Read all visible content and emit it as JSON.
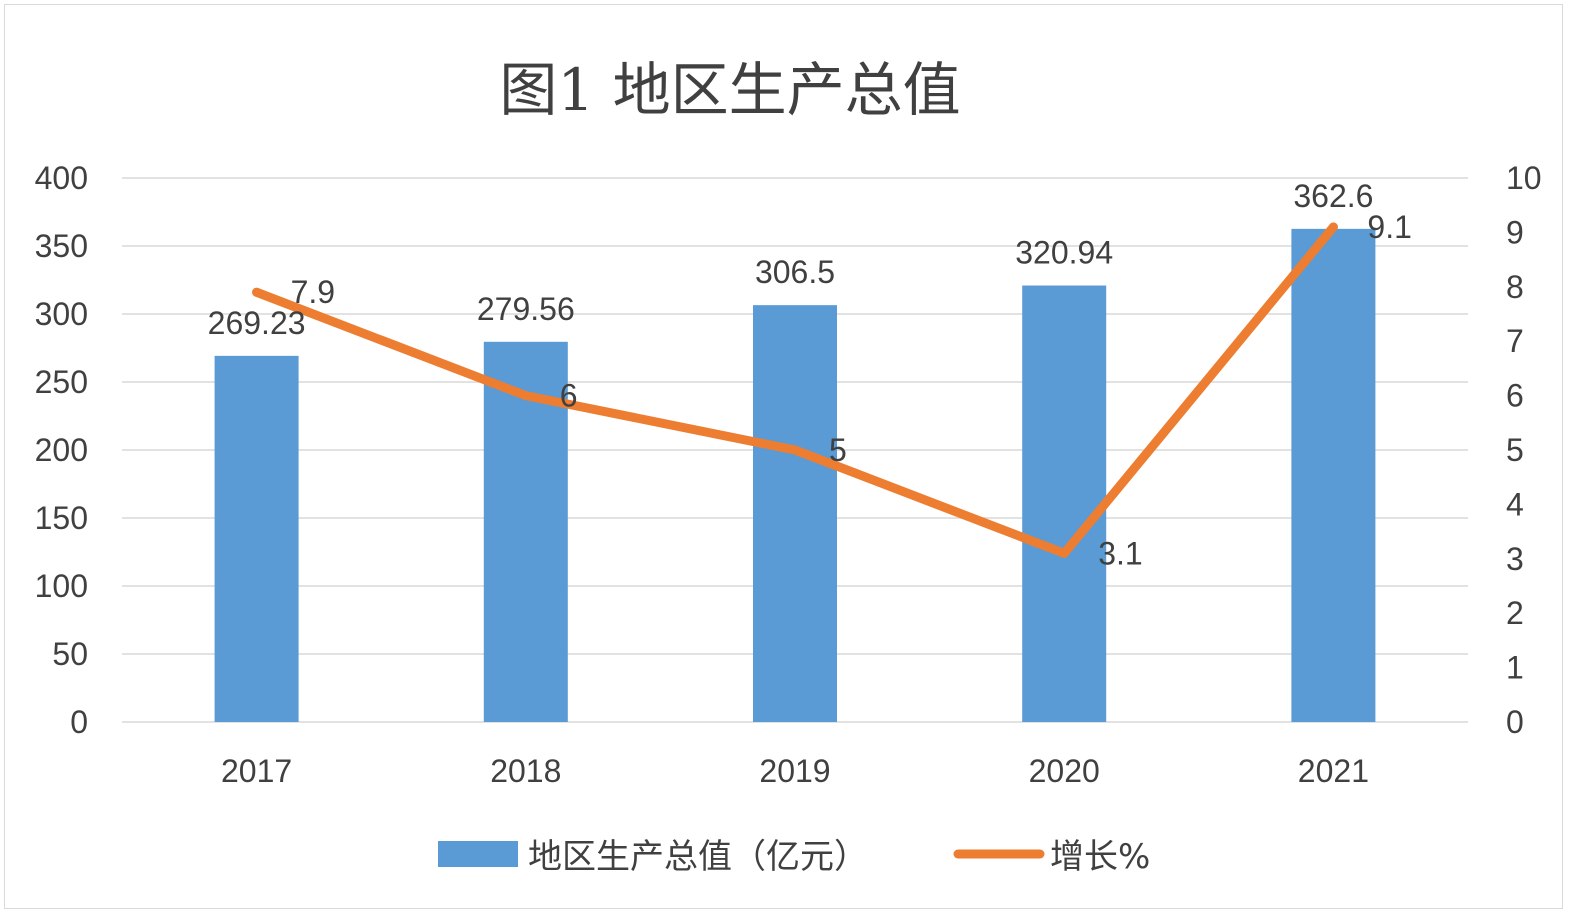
{
  "chart_data": {
    "type": "bar",
    "title": "图1 地区生产总值",
    "categories": [
      "2017",
      "2018",
      "2019",
      "2020",
      "2021"
    ],
    "series": [
      {
        "name": "地区生产总值（亿元）",
        "type": "bar",
        "axis": "left",
        "color": "#5B9BD5",
        "values": [
          269.23,
          279.56,
          306.5,
          320.94,
          362.6
        ],
        "labels": [
          "269.23",
          "279.56",
          "306.5",
          "320.94",
          "362.6"
        ]
      },
      {
        "name": "增长%",
        "type": "line",
        "axis": "right",
        "color": "#ED7D31",
        "values": [
          7.9,
          6,
          5,
          3.1,
          9.1
        ],
        "labels": [
          "7.9",
          "6",
          "5",
          "3.1",
          "9.1"
        ]
      }
    ],
    "ylim": [
      0,
      400
    ],
    "y2lim": [
      0,
      10
    ],
    "yticks": [
      "0",
      "50",
      "100",
      "150",
      "200",
      "250",
      "300",
      "350",
      "400"
    ],
    "y2ticks": [
      "0",
      "1",
      "2",
      "3",
      "4",
      "5",
      "6",
      "7",
      "8",
      "9",
      "10"
    ],
    "grid": true,
    "legend": "bottom"
  }
}
